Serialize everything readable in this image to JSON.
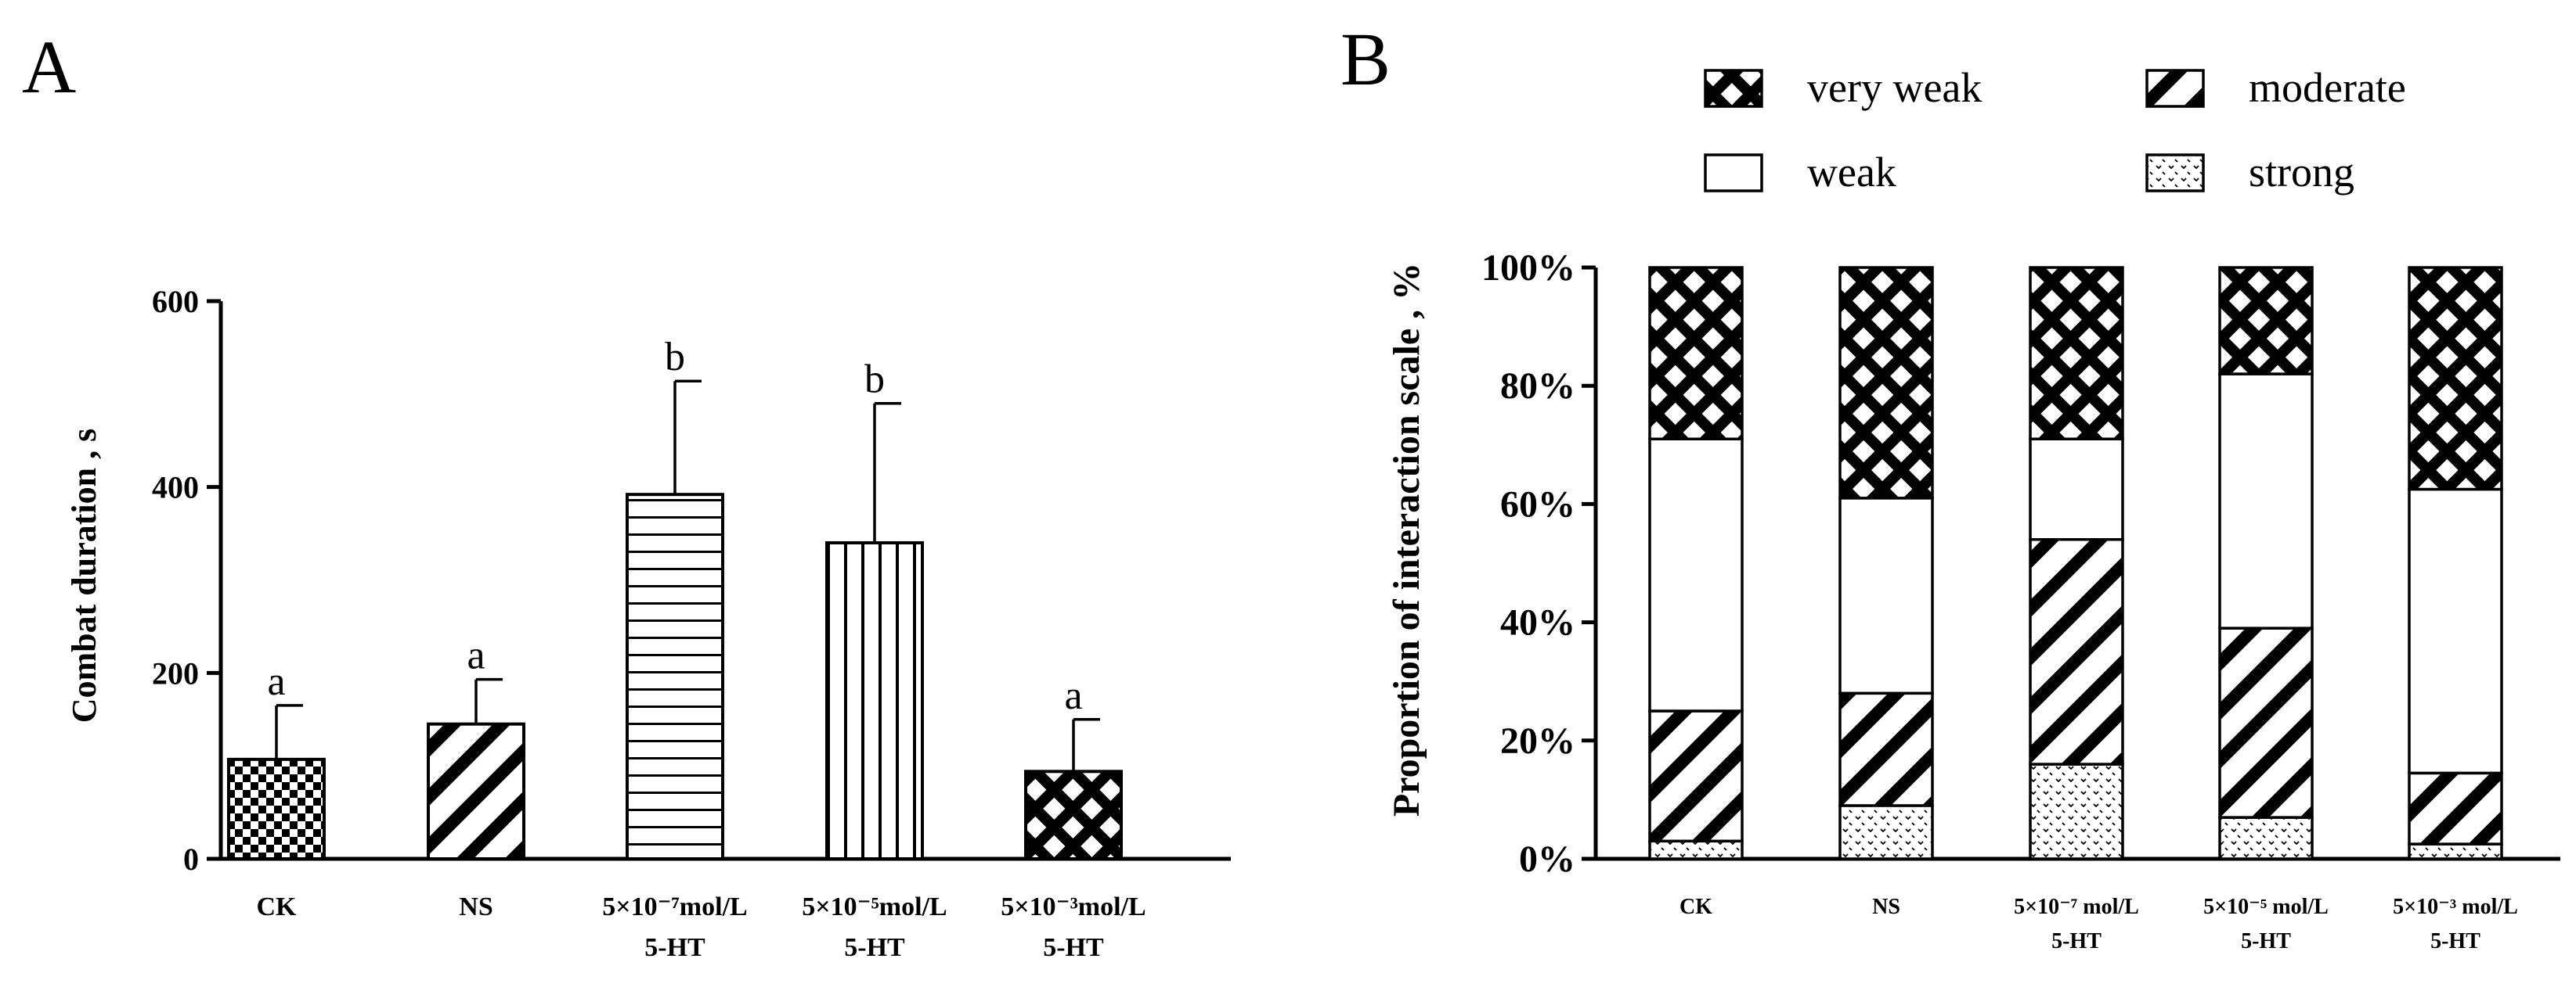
{
  "panels": {
    "a_label": "A",
    "b_label": "B"
  },
  "chart_data": [
    {
      "type": "bar",
      "panel": "A",
      "title": "",
      "xlabel": "",
      "ylabel": "Combat duration , s",
      "ylim": [
        0,
        600
      ],
      "yticks": [
        "0",
        "200",
        "400",
        "600"
      ],
      "categories": [
        {
          "line1": "CK",
          "line2": ""
        },
        {
          "line1": "NS",
          "line2": ""
        },
        {
          "line1": "5×10⁻⁷mol/L",
          "line2": "5-HT"
        },
        {
          "line1": "5×10⁻⁵mol/L",
          "line2": "5-HT"
        },
        {
          "line1": "5×10⁻³mol/L",
          "line2": "5-HT"
        }
      ],
      "values": [
        107,
        145,
        392,
        340,
        94
      ],
      "errors": [
        58,
        48,
        122,
        150,
        56
      ],
      "significance": [
        "a",
        "a",
        "b",
        "b",
        "a"
      ],
      "patterns": [
        "checker",
        "diag-down",
        "horizontal",
        "vertical",
        "crosshatch"
      ]
    },
    {
      "type": "bar",
      "stacked": true,
      "panel": "B",
      "title": "",
      "xlabel": "",
      "ylabel": "Proportion of interaction scale , %",
      "ylim": [
        0,
        100
      ],
      "yticks": [
        "0%",
        "20%",
        "40%",
        "60%",
        "80%",
        "100%"
      ],
      "categories": [
        {
          "line1": "CK",
          "line2": ""
        },
        {
          "line1": "NS",
          "line2": ""
        },
        {
          "line1": "5×10⁻⁷ mol/L",
          "line2": "5-HT"
        },
        {
          "line1": "5×10⁻⁵ mol/L",
          "line2": "5-HT"
        },
        {
          "line1": "5×10⁻³ mol/L",
          "line2": "5-HT"
        }
      ],
      "series": [
        {
          "name": "strong",
          "pattern": "dots",
          "values": [
            3,
            9,
            16,
            7,
            2.5
          ]
        },
        {
          "name": "moderate",
          "pattern": "diag-down",
          "values": [
            22,
            19,
            38,
            32,
            12
          ]
        },
        {
          "name": "weak",
          "pattern": "blank",
          "values": [
            46,
            33,
            17,
            43,
            48
          ]
        },
        {
          "name": "very weak",
          "pattern": "crosshatch",
          "values": [
            29,
            39,
            29,
            18,
            37.5
          ]
        }
      ],
      "legend": {
        "placement": "top",
        "order": [
          "very weak",
          "moderate",
          "weak",
          "strong"
        ]
      }
    }
  ]
}
